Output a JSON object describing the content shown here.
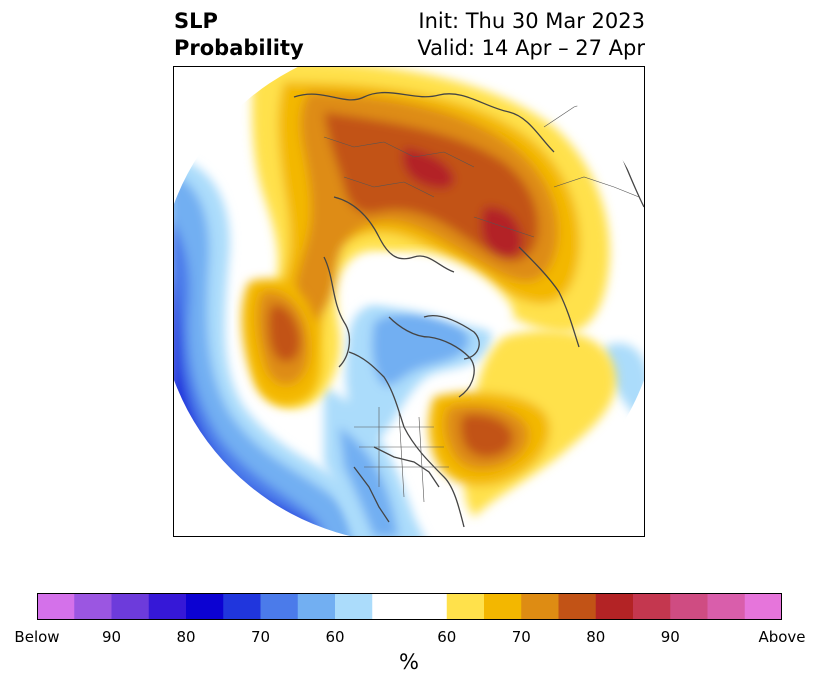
{
  "header": {
    "title_line1": "SLP",
    "title_line2": "Probability",
    "init_text": "Init: Thu 30 Mar 2023",
    "valid_text": "Valid: 14 Apr – 27 Apr"
  },
  "map": {
    "projection": "north-polar-stereographic",
    "regions_shown": [
      "North America",
      "Europe",
      "Asia",
      "Arctic"
    ],
    "below_normal_colors": {
      "60": "#abdcfb",
      "70": "#4b7bea",
      "80": "#0c02d2",
      "90": "#6d3bdb"
    },
    "above_normal_colors": {
      "50": "#ffe14b",
      "60": "#f3b700",
      "70": "#de8c13",
      "75": "#c25316",
      "80": "#b32325"
    }
  },
  "colorbar": {
    "colors": [
      "#d471ea",
      "#9b56e1",
      "#6d3bdb",
      "#3618d7",
      "#0c02d2",
      "#2036dd",
      "#4b7bea",
      "#72aff2",
      "#abdcfb",
      "#ffffff",
      "#ffffff",
      "#ffe14b",
      "#f3b700",
      "#de8c13",
      "#c25316",
      "#b32325",
      "#c4374f",
      "#cf4c82",
      "#d95eab",
      "#e675db"
    ],
    "tick_labels": [
      "Below",
      "90",
      "80",
      "70",
      "60",
      "60",
      "70",
      "80",
      "90",
      "Above"
    ],
    "unit": "%"
  }
}
